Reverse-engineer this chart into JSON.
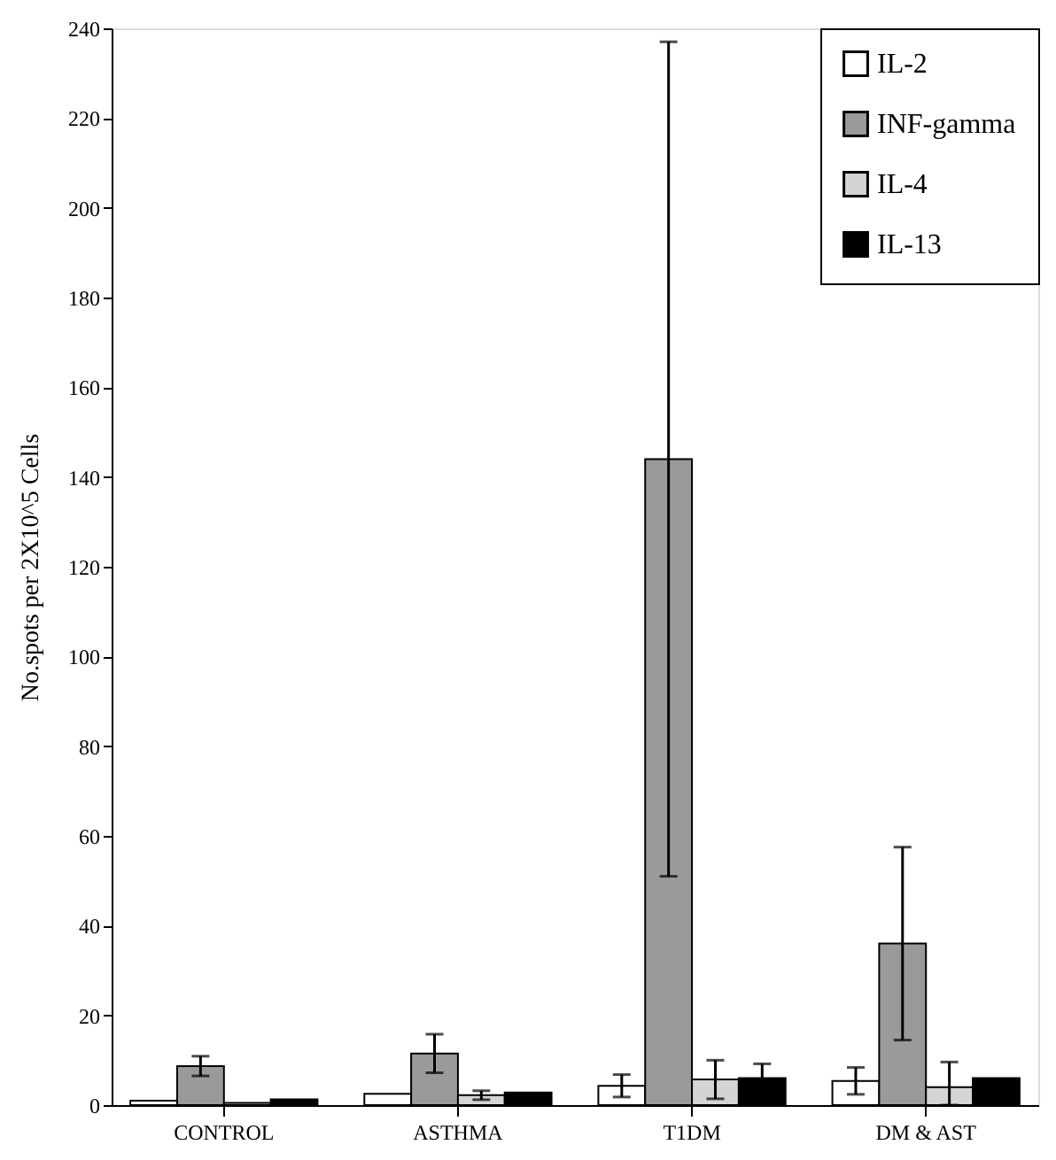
{
  "chart_data": {
    "type": "bar",
    "ylabel": "No.spots per 2X10^5 Cells",
    "categories": [
      "CONTROL",
      "ASTHMA",
      "T1DM",
      "DM & AST"
    ],
    "series": [
      {
        "name": "IL-2",
        "color": "#ffffff",
        "values": [
          1,
          2.5,
          4.3,
          5.4
        ],
        "errors": [
          null,
          null,
          2.5,
          3
        ]
      },
      {
        "name": "INF-gamma",
        "color": "#9a9a9a",
        "values": [
          8.7,
          11.5,
          144,
          36
        ],
        "errors": [
          2.2,
          4.3,
          93,
          21.5
        ]
      },
      {
        "name": "IL-4",
        "color": "#d4d4d4",
        "values": [
          0.5,
          2.2,
          5.7,
          4
        ],
        "errors": [
          null,
          1,
          4.3,
          [
            0,
            9.6
          ]
        ]
      },
      {
        "name": "IL-13",
        "color": "#000000",
        "values": [
          1.3,
          2.8,
          6,
          6
        ],
        "errors": [
          null,
          null,
          3.2,
          null
        ]
      }
    ],
    "ylim": [
      0,
      240
    ],
    "yticks": [
      0,
      20,
      40,
      60,
      80,
      100,
      120,
      140,
      160,
      180,
      200,
      220,
      240
    ],
    "grid": false,
    "legend": "top right"
  }
}
